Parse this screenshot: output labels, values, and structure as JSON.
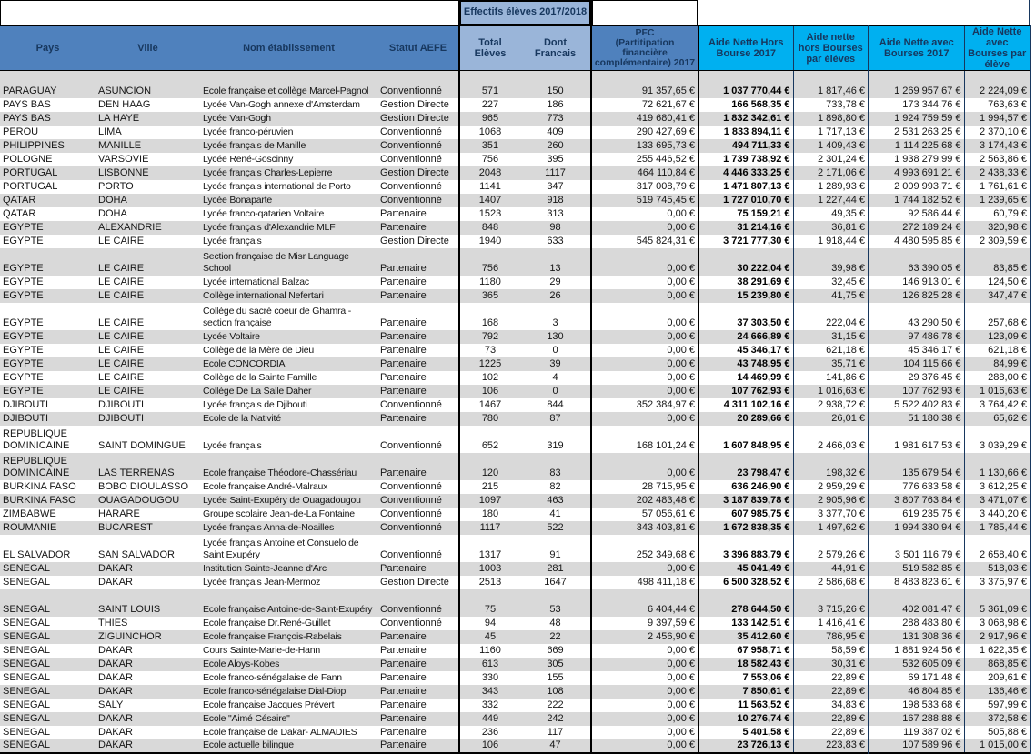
{
  "palette": {
    "header_blue": "#4F81BD",
    "header_light_blue": "#9AB5D9",
    "header_cyan": "#00B0F0",
    "header_text_navy": "#17375E",
    "row_stripe_gray": "#D9D9D9",
    "grid_border_black": "#000000"
  },
  "band": {
    "effectifs_group": "Effectifs élèves 2017/2018"
  },
  "header": {
    "pays": "Pays",
    "ville": "Ville",
    "nom": "Nom établissement",
    "statut": "Statut AEFE",
    "total": "Total Elèves",
    "dont": "Dont Francais",
    "pfc": "PFC\n(Partitipation financière\ncomplémentaire) 2017",
    "aide_hors": "Aide Nette Hors Bourse 2017",
    "aide_hors_par": "Aide nette hors Bourses par élèves",
    "aide_avec": "Aide Nette avec Bourses 2017",
    "aide_avec_par": "Aide Nette avec Bourses par élève"
  },
  "table": {
    "tall_rows": [
      0,
      12,
      15,
      23,
      24,
      29,
      32
    ],
    "rows": [
      [
        "PARAGUAY",
        "ASUNCION",
        "Ecole française et collège Marcel-Pagnol",
        "Conventionné",
        "571",
        "150",
        "91 357,65 €",
        "1 037 770,44 €",
        "1 817,46 €",
        "1 269 957,67 €",
        "2 224,09 €"
      ],
      [
        "PAYS BAS",
        "DEN HAAG",
        "Lycée Van-Gogh annexe d'Amsterdam",
        "Gestion Directe",
        "227",
        "186",
        "72 621,67 €",
        "166 568,35 €",
        "733,78 €",
        "173 344,76 €",
        "763,63 €"
      ],
      [
        "PAYS BAS",
        "LA HAYE",
        "Lycée Van-Gogh",
        "Gestion Directe",
        "965",
        "773",
        "419 680,41 €",
        "1 832 342,61 €",
        "1 898,80 €",
        "1 924 759,59 €",
        "1 994,57 €"
      ],
      [
        "PEROU",
        "LIMA",
        "Lycée franco-péruvien",
        "Conventionné",
        "1068",
        "409",
        "290 427,69 €",
        "1 833 894,11 €",
        "1 717,13 €",
        "2 531 263,25 €",
        "2 370,10 €"
      ],
      [
        "PHILIPPINES",
        "MANILLE",
        "Lycée français de Manille",
        "Conventionné",
        "351",
        "260",
        "133 695,73 €",
        "494 711,33 €",
        "1 409,43 €",
        "1 114 225,68 €",
        "3 174,43 €"
      ],
      [
        "POLOGNE",
        "VARSOVIE",
        "Lycée René-Goscinny",
        "Conventionné",
        "756",
        "395",
        "255 446,52 €",
        "1 739 738,92 €",
        "2 301,24 €",
        "1 938 279,99 €",
        "2 563,86 €"
      ],
      [
        "PORTUGAL",
        "LISBONNE",
        "Lycée français Charles-Lepierre",
        "Gestion Directe",
        "2048",
        "1117",
        "464 110,84 €",
        "4 446 333,25 €",
        "2 171,06 €",
        "4 993 691,21 €",
        "2 438,33 €"
      ],
      [
        "PORTUGAL",
        "PORTO",
        "Lycée français international de Porto",
        "Conventionné",
        "1141",
        "347",
        "317 008,79 €",
        "1 471 807,13 €",
        "1 289,93 €",
        "2 009 993,71 €",
        "1 761,61 €"
      ],
      [
        "QATAR",
        "DOHA",
        "Lycée Bonaparte",
        "Conventionné",
        "1407",
        "918",
        "519 745,45 €",
        "1 727 010,70 €",
        "1 227,44 €",
        "1 744 182,52 €",
        "1 239,65 €"
      ],
      [
        "QATAR",
        "DOHA",
        "Lycée franco-qatarien Voltaire",
        "Partenaire",
        "1523",
        "313",
        "0,00 €",
        "75 159,21 €",
        "49,35 €",
        "92 586,44 €",
        "60,79 €"
      ],
      [
        "EGYPTE",
        "ALEXANDRIE",
        "Lycée français d'Alexandrie MLF",
        "Partenaire",
        "848",
        "98",
        "0,00 €",
        "31 214,16 €",
        "36,81 €",
        "272 189,24 €",
        "320,98 €"
      ],
      [
        "EGYPTE",
        "LE CAIRE",
        "Lycée français",
        "Gestion Directe",
        "1940",
        "633",
        "545 824,31 €",
        "3 721 777,30 €",
        "1 918,44 €",
        "4 480 595,85 €",
        "2 309,59 €"
      ],
      [
        "EGYPTE",
        "LE CAIRE",
        "Section française de Misr Language School",
        "Partenaire",
        "756",
        "13",
        "0,00 €",
        "30 222,04 €",
        "39,98 €",
        "63 390,05 €",
        "83,85 €"
      ],
      [
        "EGYPTE",
        "LE CAIRE",
        "Lycée international Balzac",
        "Partenaire",
        "1180",
        "29",
        "0,00 €",
        "38 291,69 €",
        "32,45 €",
        "146 913,01 €",
        "124,50 €"
      ],
      [
        "EGYPTE",
        "LE CAIRE",
        "Collège international Nefertari",
        "Partenaire",
        "365",
        "26",
        "0,00 €",
        "15 239,80 €",
        "41,75 €",
        "126 825,28 €",
        "347,47 €"
      ],
      [
        "EGYPTE",
        "LE CAIRE",
        "Collège du sacré coeur de Ghamra - section française",
        "Partenaire",
        "168",
        "3",
        "0,00 €",
        "37 303,50 €",
        "222,04 €",
        "43 290,50 €",
        "257,68 €"
      ],
      [
        "EGYPTE",
        "LE CAIRE",
        "Lycée Voltaire",
        "Partenaire",
        "792",
        "130",
        "0,00 €",
        "24 666,89 €",
        "31,15 €",
        "97 486,78 €",
        "123,09 €"
      ],
      [
        "EGYPTE",
        "LE CAIRE",
        "Collège de la Mère de Dieu",
        "Partenaire",
        "73",
        "0",
        "0,00 €",
        "45 346,17 €",
        "621,18 €",
        "45 346,17 €",
        "621,18 €"
      ],
      [
        "EGYPTE",
        "LE CAIRE",
        "Ecole CONCORDIA",
        "Partenaire",
        "1225",
        "39",
        "0,00 €",
        "43 748,95 €",
        "35,71 €",
        "104 115,66 €",
        "84,99 €"
      ],
      [
        "EGYPTE",
        "LE CAIRE",
        "Collège de la Sainte Famille",
        "Partenaire",
        "102",
        "4",
        "0,00 €",
        "14 469,99 €",
        "141,86 €",
        "29 376,45 €",
        "288,00 €"
      ],
      [
        "EGYPTE",
        "LE CAIRE",
        "Collège De La Salle Daher",
        "Partenaire",
        "106",
        "0",
        "0,00 €",
        "107 762,93 €",
        "1 016,63 €",
        "107 762,93 €",
        "1 016,63 €"
      ],
      [
        "DJIBOUTI",
        "DJIBOUTI",
        "Lycée français de Djibouti",
        "Conventionné",
        "1467",
        "844",
        "352 384,97 €",
        "4 311 102,16 €",
        "2 938,72 €",
        "5 522 402,83 €",
        "3 764,42 €"
      ],
      [
        "DJIBOUTI",
        "DJIBOUTI",
        "Ecole de la Nativité",
        "Partenaire",
        "780",
        "87",
        "0,00 €",
        "20 289,66 €",
        "26,01 €",
        "51 180,38 €",
        "65,62 €"
      ],
      [
        "REPUBLIQUE DOMINICAINE",
        "SAINT DOMINGUE",
        "Lycée français",
        "Conventionné",
        "652",
        "319",
        "168 101,24 €",
        "1 607 848,95 €",
        "2 466,03 €",
        "1 981 617,53 €",
        "3 039,29 €"
      ],
      [
        "REPUBLIQUE DOMINICAINE",
        "LAS TERRENAS",
        "Ecole française Théodore-Chassériau",
        "Partenaire",
        "120",
        "83",
        "0,00 €",
        "23 798,47 €",
        "198,32 €",
        "135 679,54 €",
        "1 130,66 €"
      ],
      [
        "BURKINA FASO",
        "BOBO DIOULASSO",
        "Ecole française André-Malraux",
        "Conventionné",
        "215",
        "82",
        "28 715,95 €",
        "636 246,90 €",
        "2 959,29 €",
        "776 633,58 €",
        "3 612,25 €"
      ],
      [
        "BURKINA FASO",
        "OUAGADOUGOU",
        "Lycée Saint-Exupéry de Ouagadougou",
        "Conventionné",
        "1097",
        "463",
        "202 483,48 €",
        "3 187 839,78 €",
        "2 905,96 €",
        "3 807 763,84 €",
        "3 471,07 €"
      ],
      [
        "ZIMBABWE",
        "HARARE",
        "Groupe scolaire Jean-de-La Fontaine",
        "Conventionné",
        "180",
        "41",
        "57 056,61 €",
        "607 985,75 €",
        "3 377,70 €",
        "619 235,75 €",
        "3 440,20 €"
      ],
      [
        "ROUMANIE",
        "BUCAREST",
        "Lycée français Anna-de-Noailles",
        "Conventionné",
        "1117",
        "522",
        "343 403,81 €",
        "1 672 838,35 €",
        "1 497,62 €",
        "1 994 330,94 €",
        "1 785,44 €"
      ],
      [
        "EL SALVADOR",
        "SAN SALVADOR",
        "Lycée français Antoine et Consuelo de Saint Exupéry",
        "Conventionné",
        "1317",
        "91",
        "252 349,68 €",
        "3 396 883,79 €",
        "2 579,26 €",
        "3 501 116,79 €",
        "2 658,40 €"
      ],
      [
        "SENEGAL",
        "DAKAR",
        "Institution Sainte-Jeanne d'Arc",
        "Partenaire",
        "1003",
        "281",
        "0,00 €",
        "45 041,49 €",
        "44,91 €",
        "519 582,85 €",
        "518,03 €"
      ],
      [
        "SENEGAL",
        "DAKAR",
        "Lycée français Jean-Mermoz",
        "Gestion Directe",
        "2513",
        "1647",
        "498 411,18 €",
        "6 500 328,52 €",
        "2 586,68 €",
        "8 483 823,61 €",
        "3 375,97 €"
      ],
      [
        "SENEGAL",
        "SAINT LOUIS",
        "Ecole française Antoine-de-Saint-Exupéry",
        "Conventionné",
        "75",
        "53",
        "6 404,44 €",
        "278 644,50 €",
        "3 715,26 €",
        "402 081,47 €",
        "5 361,09 €"
      ],
      [
        "SENEGAL",
        "THIES",
        "Ecole française Dr.René-Guillet",
        "Conventionné",
        "94",
        "48",
        "9 397,59 €",
        "133 142,51 €",
        "1 416,41 €",
        "288 483,80 €",
        "3 068,98 €"
      ],
      [
        "SENEGAL",
        "ZIGUINCHOR",
        "Ecole française François-Rabelais",
        "Partenaire",
        "45",
        "22",
        "2 456,90 €",
        "35 412,60 €",
        "786,95 €",
        "131 308,36 €",
        "2 917,96 €"
      ],
      [
        "SENEGAL",
        "DAKAR",
        "Cours Sainte-Marie-de-Hann",
        "Partenaire",
        "1160",
        "669",
        "0,00 €",
        "67 958,71 €",
        "58,59 €",
        "1 881 924,56 €",
        "1 622,35 €"
      ],
      [
        "SENEGAL",
        "DAKAR",
        "Ecole Aloys-Kobes",
        "Partenaire",
        "613",
        "305",
        "0,00 €",
        "18 582,43 €",
        "30,31 €",
        "532 605,09 €",
        "868,85 €"
      ],
      [
        "SENEGAL",
        "DAKAR",
        "Ecole franco-sénégalaise de Fann",
        "Partenaire",
        "330",
        "155",
        "0,00 €",
        "7 553,06 €",
        "22,89 €",
        "69 171,48 €",
        "209,61 €"
      ],
      [
        "SENEGAL",
        "DAKAR",
        "Ecole franco-sénégalaise Dial-Diop",
        "Partenaire",
        "343",
        "108",
        "0,00 €",
        "7 850,61 €",
        "22,89 €",
        "46 804,85 €",
        "136,46 €"
      ],
      [
        "SENEGAL",
        "SALY",
        "Ecole française Jacques Prévert",
        "Partenaire",
        "332",
        "222",
        "0,00 €",
        "11 563,52 €",
        "34,83 €",
        "198 533,68 €",
        "597,99 €"
      ],
      [
        "SENEGAL",
        "DAKAR",
        "Ecole \"Aimé Césaire\"",
        "Partenaire",
        "449",
        "242",
        "0,00 €",
        "10 276,74 €",
        "22,89 €",
        "167 288,88 €",
        "372,58 €"
      ],
      [
        "SENEGAL",
        "DAKAR",
        "Ecole française de Dakar- ALMADIES",
        "Partenaire",
        "236",
        "117",
        "0,00 €",
        "5 401,58 €",
        "22,89 €",
        "119 387,02 €",
        "505,88 €"
      ],
      [
        "SENEGAL",
        "DAKAR",
        "Ecole actuelle bilingue",
        "Partenaire",
        "106",
        "47",
        "0,00 €",
        "23 726,13 €",
        "223,83 €",
        "107 589,96 €",
        "1 015,00 €"
      ]
    ]
  }
}
